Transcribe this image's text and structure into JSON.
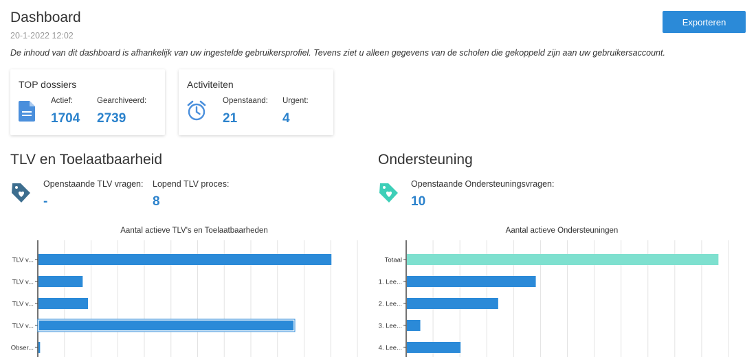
{
  "header": {
    "title": "Dashboard",
    "date": "20-1-2022 12:02",
    "description": "De inhoud van dit dashboard is afhankelijk van uw ingestelde gebruikersprofiel. Tevens ziet u alleen gegevens van de scholen die gekoppeld zijn aan uw gebruikersaccount.",
    "export_label": "Exporteren"
  },
  "cards": {
    "top_dossiers": {
      "title": "TOP dossiers",
      "icon": "document-icon",
      "stats": [
        {
          "label": "Actief:",
          "value": "1704"
        },
        {
          "label": "Gearchiveerd:",
          "value": "2739"
        }
      ]
    },
    "activiteiten": {
      "title": "Activiteiten",
      "icon": "alarm-clock-icon",
      "stats": [
        {
          "label": "Openstaand:",
          "value": "21"
        },
        {
          "label": "Urgent:",
          "value": "4"
        }
      ]
    }
  },
  "tlv": {
    "title": "TLV en Toelaatbaarheid",
    "icon": "tag-heart-icon",
    "stats": [
      {
        "label": "Openstaande TLV vragen:",
        "value": "-"
      },
      {
        "label": "Lopend TLV proces:",
        "value": "8"
      }
    ]
  },
  "ondersteuning": {
    "title": "Ondersteuning",
    "icon": "tag-heart-icon",
    "stats": [
      {
        "label": "Openstaande Ondersteuningsvragen:",
        "value": "10"
      }
    ]
  },
  "colors": {
    "accent": "#2b82cc",
    "bar": "#2b8ad8",
    "bar_highlight": "#7ee0cf",
    "tag_dark": "#3d6e8f",
    "tag_teal": "#3ecfb8"
  },
  "chart_data": [
    {
      "type": "bar",
      "orientation": "horizontal",
      "title": "Aantal actieve TLV's en Toelaatbaarheden",
      "categories": [
        "TLV v...",
        "TLV v...",
        "TLV v...",
        "TLV v...",
        "Obser..."
      ],
      "values": [
        55,
        8.3,
        9.3,
        48,
        0.3
      ],
      "xlim": [
        0,
        60
      ],
      "grid": true
    },
    {
      "type": "bar",
      "orientation": "horizontal",
      "title": "Aantal actieve Ondersteuningen",
      "categories": [
        "Totaal",
        "1. Lee...",
        "2. Lee...",
        "3. Lee...",
        "4. Lee..."
      ],
      "values": [
        58,
        24,
        17,
        2.5,
        10
      ],
      "xlim": [
        0,
        60
      ],
      "grid": true
    }
  ]
}
